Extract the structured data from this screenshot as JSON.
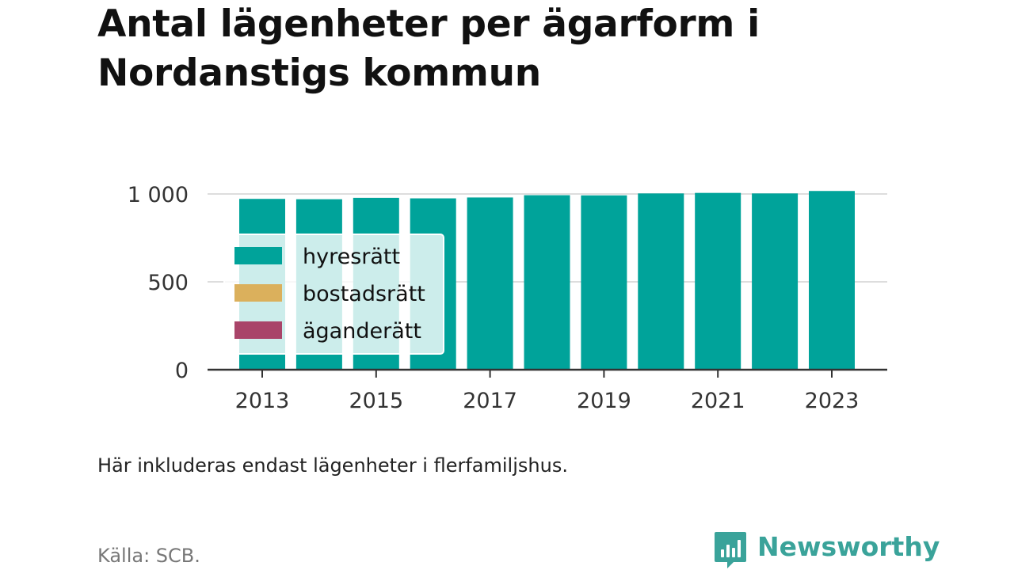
{
  "title": "Antal lägenheter per ägarform i Nordanstigs kommun",
  "note": "Här inkluderas endast lägenheter i flerfamiljshus.",
  "source": "Källa: SCB.",
  "brand": {
    "name": "Newsworthy",
    "icon": "newsworthy-logo-icon",
    "color": "#3aa39a"
  },
  "chart_data": {
    "type": "bar",
    "stacked": true,
    "categories": [
      "2013",
      "2014",
      "2015",
      "2016",
      "2017",
      "2018",
      "2019",
      "2020",
      "2021",
      "2022",
      "2023"
    ],
    "series": [
      {
        "name": "hyresrätt",
        "color": "#00a39a",
        "values": [
          972,
          970,
          978,
          975,
          980,
          993,
          992,
          1003,
          1006,
          1003,
          1017
        ]
      },
      {
        "name": "bostadsrätt",
        "color": "#dbb05c",
        "values": [
          0,
          0,
          0,
          0,
          0,
          0,
          0,
          0,
          0,
          0,
          0
        ]
      },
      {
        "name": "äganderätt",
        "color": "#a94469",
        "values": [
          0,
          0,
          0,
          0,
          0,
          0,
          0,
          0,
          0,
          0,
          0
        ]
      }
    ],
    "x_tick_labels": [
      "2013",
      "2015",
      "2017",
      "2019",
      "2021",
      "2023"
    ],
    "y_ticks": [
      0,
      500,
      1000
    ],
    "y_tick_labels": [
      "0",
      "500",
      "1 000"
    ],
    "ylim": [
      0,
      1000
    ],
    "xlabel": "",
    "ylabel": "",
    "grid": true,
    "legend_position": "left, overlaid on bars"
  }
}
